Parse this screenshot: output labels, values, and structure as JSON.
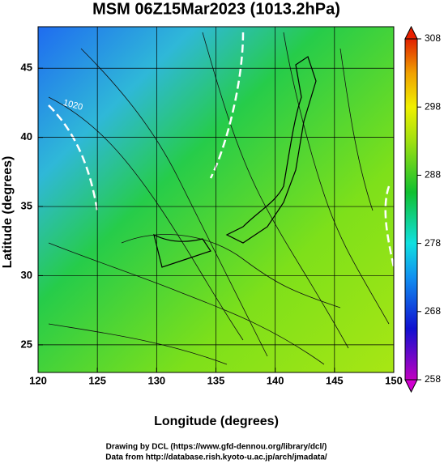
{
  "chart_data": {
    "type": "map",
    "title": "MSM 06Z15Mar2023 (1013.2hPa)",
    "x_label": "Longitude (degrees)",
    "y_label": "Latitude  (degrees)",
    "xlim": [
      120,
      150
    ],
    "xticks": [
      120,
      125,
      130,
      135,
      140,
      145,
      150
    ],
    "ylim": [
      23,
      48
    ],
    "yticks": [
      25,
      30,
      35,
      40,
      45
    ],
    "grid": true,
    "colorbar": {
      "lim": [
        258,
        308
      ],
      "ticks": [
        258,
        268,
        278,
        288,
        298,
        308
      ]
    },
    "annotations": [
      "1020"
    ]
  },
  "footer": [
    "Drawing by DCL (https://www.gfd-dennou.org/library/dcl/)",
    "Data from http://database.rish.kyoto-u.ac.jp/arch/jmadata/"
  ]
}
